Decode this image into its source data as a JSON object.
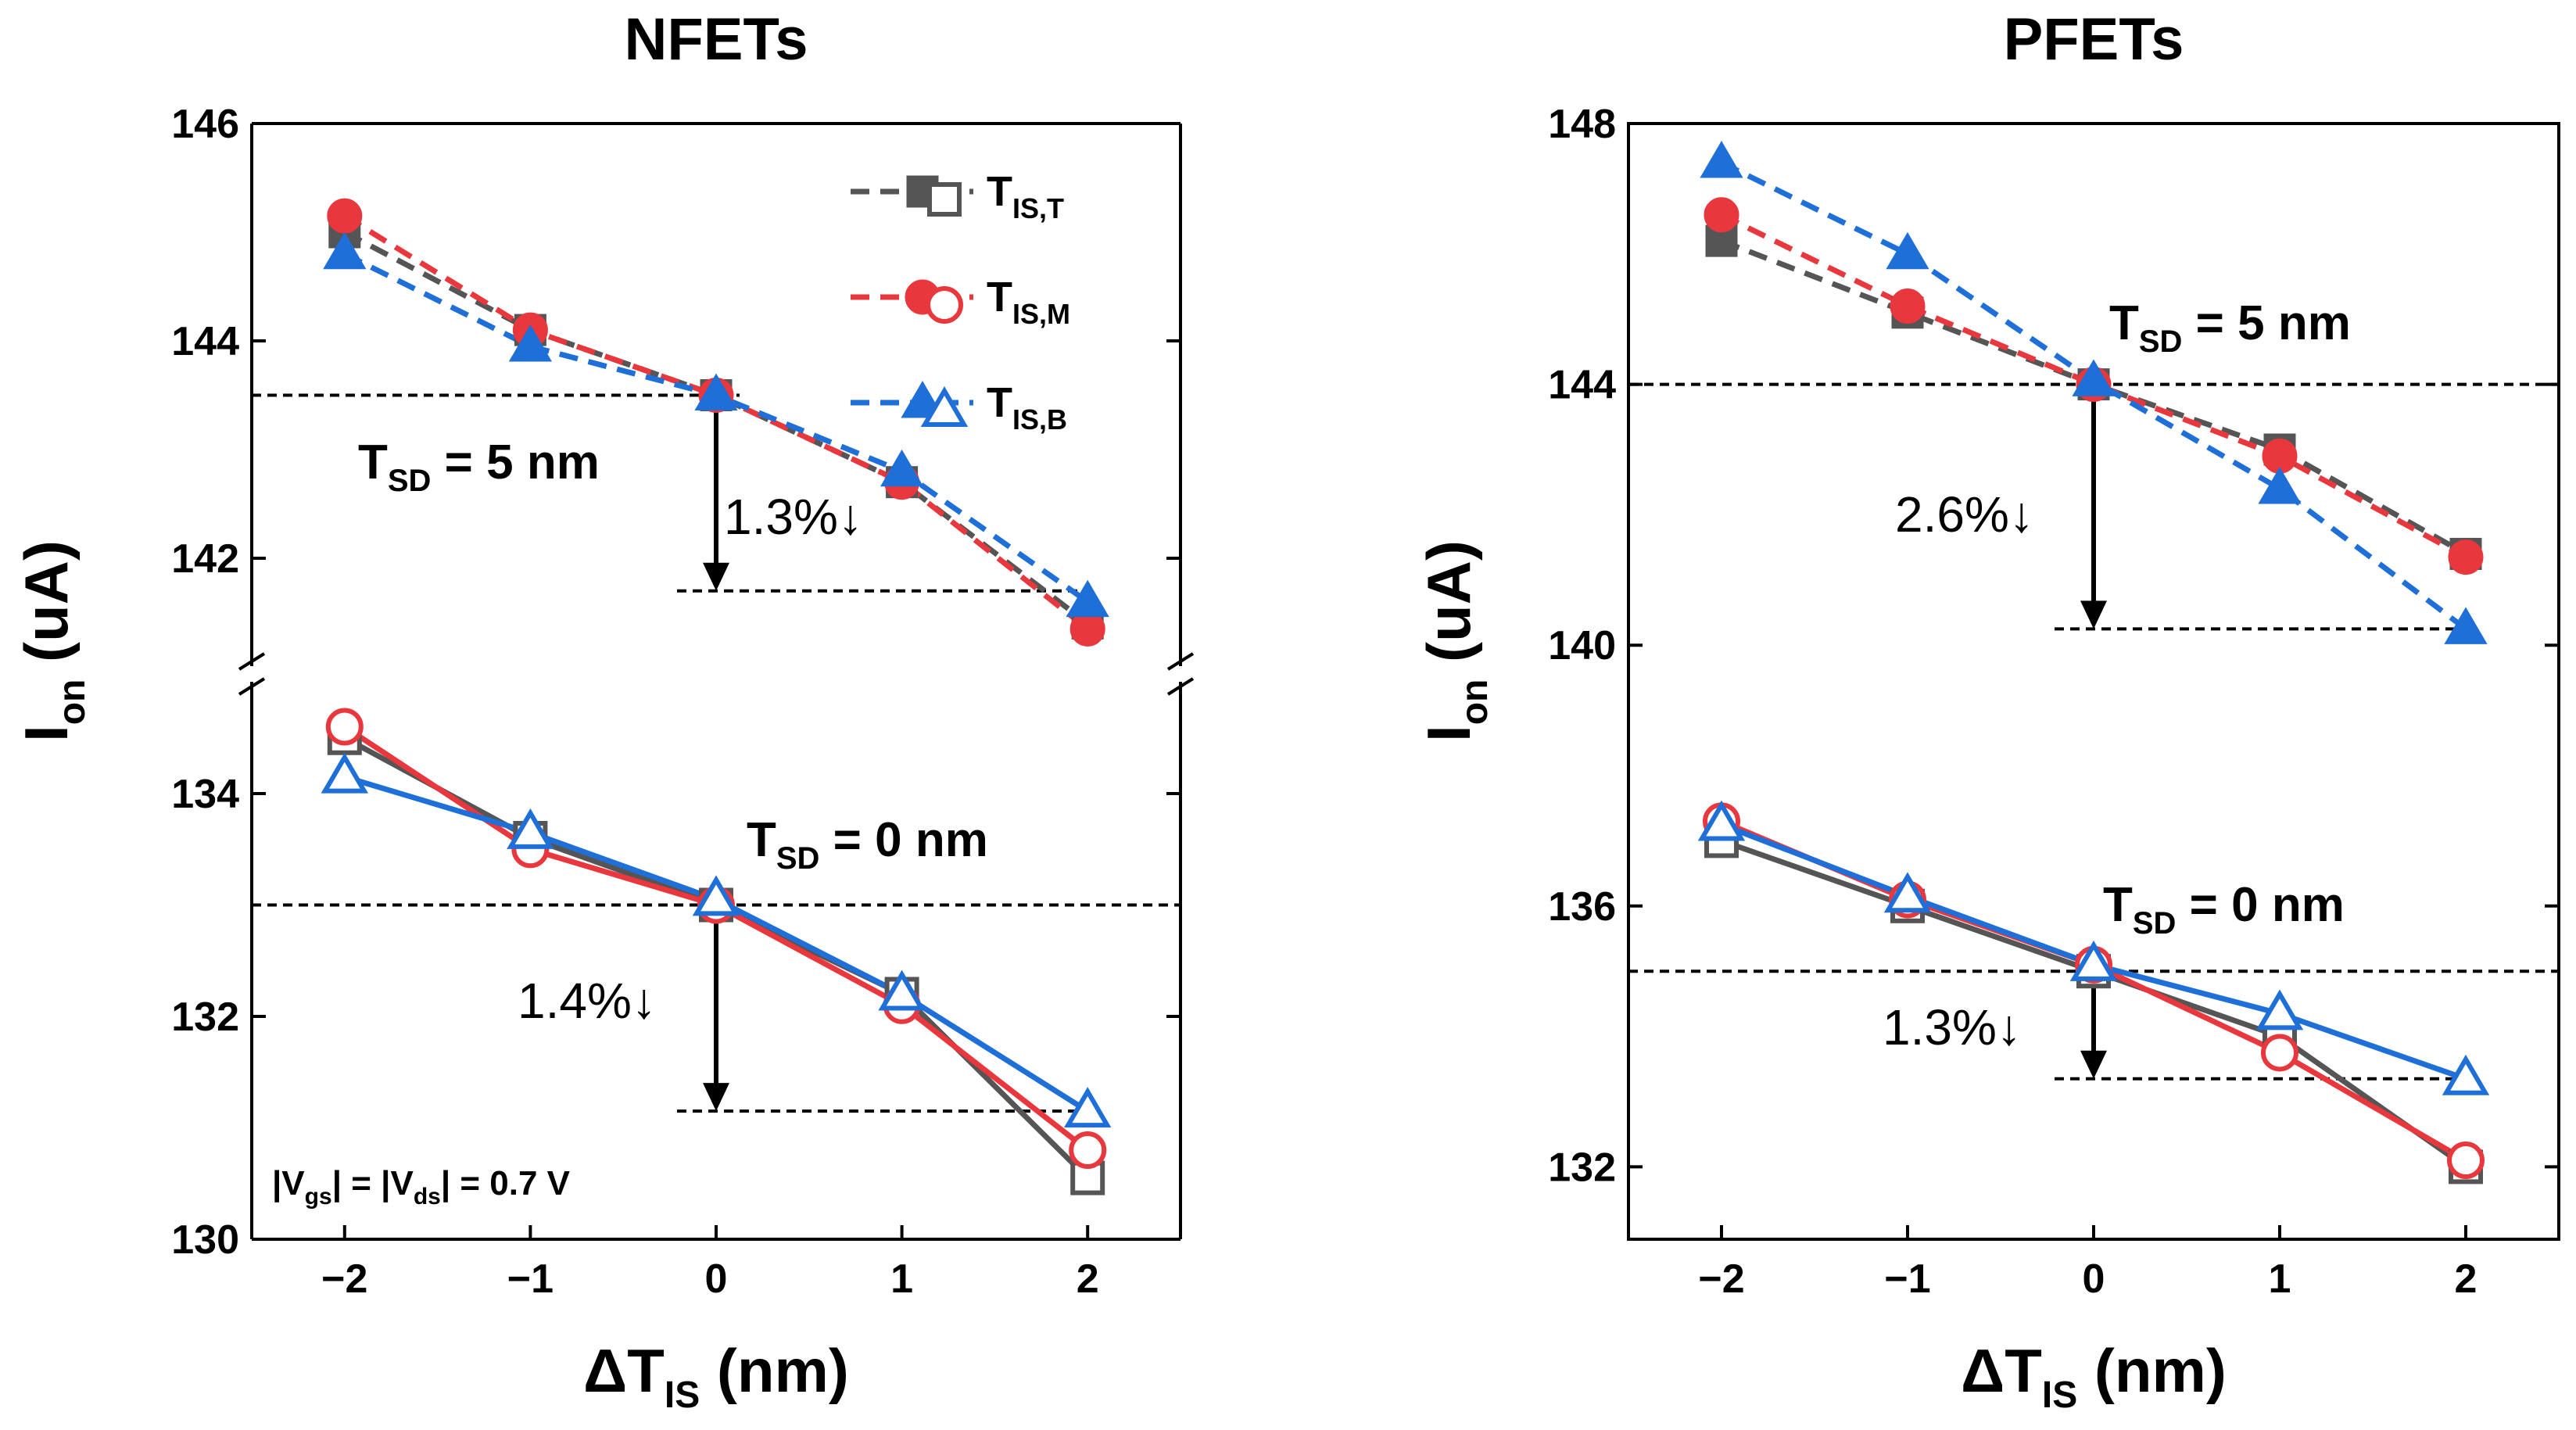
{
  "figure": {
    "legend": [
      {
        "main": "T",
        "sub": "IS,T",
        "color": "#555555",
        "marker": "square"
      },
      {
        "main": "T",
        "sub": "IS,M",
        "color": "#e8373d",
        "marker": "circle"
      },
      {
        "main": "T",
        "sub": "IS,B",
        "color": "#1f6fd8",
        "marker": "triangle"
      }
    ],
    "note_parts": [
      "|V",
      "gs",
      "| = |V",
      "ds",
      "| = 0.7 V"
    ]
  },
  "chart_data": [
    {
      "type": "line",
      "title": "NFETs",
      "xlabel": {
        "main": "ΔT",
        "sub": "IS",
        "rest": " (nm)"
      },
      "ylabel": {
        "main": "I",
        "sub": "on",
        "rest": " (uA)"
      },
      "x": [
        -2,
        -1,
        0,
        1,
        2
      ],
      "xtick_labels": [
        "−2",
        "−1",
        "0",
        "1",
        "2"
      ],
      "xlim": [
        -2.5,
        2.5
      ],
      "upper_panel": {
        "ylim": [
          141,
          146
        ],
        "yticks": [
          142,
          144,
          146
        ],
        "series": [
          {
            "name": "T_IS,T",
            "style": "dashed",
            "values": [
              145.0,
              144.1,
              143.5,
              142.7,
              141.4
            ]
          },
          {
            "name": "T_IS,M",
            "style": "dashed",
            "values": [
              145.15,
              144.1,
              143.5,
              142.7,
              141.35
            ]
          },
          {
            "name": "T_IS,B",
            "style": "dashed",
            "values": [
              144.8,
              143.95,
              143.5,
              142.8,
              141.6
            ]
          }
        ],
        "reference_level": 143.5,
        "arrow_end": 141.7,
        "annotation": {
          "label_main": "T",
          "label_sub": "SD",
          "label_rest": " = 5 nm",
          "percent": "1.3%↓"
        }
      },
      "lower_panel": {
        "ylim": [
          130,
          135
        ],
        "yticks": [
          130,
          132,
          134
        ],
        "series": [
          {
            "name": "T_IS,T",
            "style": "solid",
            "values": [
              134.5,
              133.6,
              133.0,
              132.2,
              130.55
            ]
          },
          {
            "name": "T_IS,M",
            "style": "solid",
            "values": [
              134.6,
              133.5,
              133.0,
              132.1,
              130.8
            ]
          },
          {
            "name": "T_IS,B",
            "style": "solid",
            "values": [
              134.15,
              133.65,
              133.05,
              132.2,
              131.15
            ]
          }
        ],
        "reference_level": 133.0,
        "arrow_end": 131.15,
        "annotation": {
          "label_main": "T",
          "label_sub": "SD",
          "label_rest": " = 0 nm",
          "percent": "1.4%↓"
        }
      }
    },
    {
      "type": "line",
      "title": "PFETs",
      "xlabel": {
        "main": "ΔT",
        "sub": "IS",
        "rest": " (nm)"
      },
      "ylabel": {
        "main": "I",
        "sub": "on",
        "rest": " (uA)"
      },
      "x": [
        -2,
        -1,
        0,
        1,
        2
      ],
      "xtick_labels": [
        "−2",
        "−1",
        "0",
        "1",
        "2"
      ],
      "xlim": [
        -2.5,
        2.5
      ],
      "ylim": [
        131,
        148
      ],
      "yticks": [
        132,
        136,
        140,
        144,
        148
      ],
      "upper_group": {
        "series": [
          {
            "name": "T_IS,T",
            "style": "dashed",
            "values": [
              146.2,
              145.1,
              144.0,
              143.0,
              141.4
            ]
          },
          {
            "name": "T_IS,M",
            "style": "dashed",
            "values": [
              146.6,
              145.2,
              144.0,
              142.9,
              141.35
            ]
          },
          {
            "name": "T_IS,B",
            "style": "dashed",
            "values": [
              147.4,
              146.0,
              144.05,
              142.4,
              140.25
            ]
          }
        ],
        "reference_level": 144.0,
        "arrow_end": 140.25,
        "annotation": {
          "label_main": "T",
          "label_sub": "SD",
          "label_rest": " = 5 nm",
          "percent": "2.6%↓"
        }
      },
      "lower_group": {
        "series": [
          {
            "name": "T_IS,T",
            "style": "solid",
            "values": [
              137.0,
              136.0,
              135.0,
              134.0,
              132.0
            ]
          },
          {
            "name": "T_IS,M",
            "style": "solid",
            "values": [
              137.3,
              136.1,
              135.1,
              133.75,
              132.1
            ]
          },
          {
            "name": "T_IS,B",
            "style": "solid",
            "values": [
              137.25,
              136.15,
              135.1,
              134.35,
              133.35
            ]
          }
        ],
        "reference_level": 135.0,
        "arrow_end": 133.35,
        "annotation": {
          "label_main": "T",
          "label_sub": "SD",
          "label_rest": " = 0 nm",
          "percent": "1.3%↓"
        }
      }
    }
  ]
}
